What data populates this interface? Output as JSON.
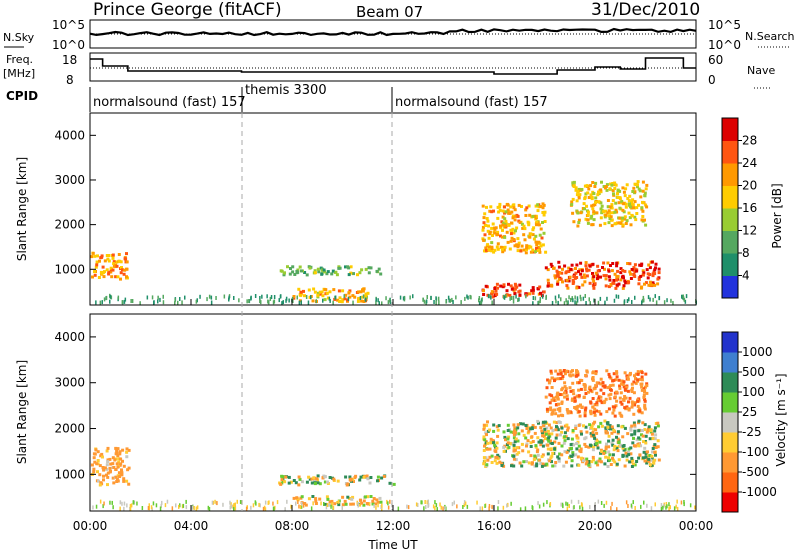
{
  "header": {
    "radar": "Prince George (fitACF)",
    "beam": "Beam 07",
    "date": "31/Dec/2010"
  },
  "noise_panel": {
    "left_label": "N.Sky",
    "right_label": "N.Search",
    "left_ticks": [
      "10^5",
      "10^0"
    ],
    "right_ticks": [
      "10^5",
      "10^0"
    ]
  },
  "freq_panel": {
    "left_label_1": "Freq.",
    "left_label_2": "[MHz]",
    "right_label": "Nave",
    "left_ticks": [
      "18",
      "8"
    ],
    "right_ticks": [
      "60",
      "0"
    ]
  },
  "cpid": {
    "label": "CPID",
    "segments": [
      {
        "text": "normalsound (fast) 157",
        "start": "00:00"
      },
      {
        "text": "themis 3300",
        "start": "06:00"
      },
      {
        "text": "normalsound (fast) 157",
        "start": "12:00"
      }
    ]
  },
  "power_panel": {
    "ylabel": "Slant Range [km]",
    "yticks": [
      "1000",
      "2000",
      "3000",
      "4000"
    ],
    "colorbar_label": "Power [dB]",
    "colorbar_ticks": [
      "4",
      "8",
      "12",
      "16",
      "20",
      "24",
      "28"
    ],
    "colorbar_colors": [
      "#2233dd",
      "#1f8f6a",
      "#55a860",
      "#99cc33",
      "#ffcc00",
      "#ff9900",
      "#ff5511",
      "#dd0000"
    ]
  },
  "velocity_panel": {
    "ylabel": "Slant Range [km]",
    "yticks": [
      "1000",
      "2000",
      "3000",
      "4000"
    ],
    "colorbar_label": "Velocity [m s⁻¹]",
    "colorbar_ticks": [
      "1000",
      "500",
      "100",
      "25",
      "-25",
      "-100",
      "-500",
      "-1000"
    ],
    "colorbar_colors": [
      "#2233cc",
      "#3f7fd0",
      "#2e8b57",
      "#66cc33",
      "#c8c8c0",
      "#ffcc33",
      "#ff9933",
      "#ff6611",
      "#ee0000"
    ]
  },
  "xaxis": {
    "label": "Time UT",
    "ticks": [
      "00:00",
      "04:00",
      "08:00",
      "12:00",
      "16:00",
      "20:00",
      "00:00"
    ]
  },
  "chart_data": {
    "type": "heatmap",
    "title": "Prince George (fitACF)   Beam 07   31/Dec/2010",
    "xlabel": "Time UT",
    "ylabel": "Slant Range [km]",
    "xlim": [
      "00:00",
      "24:00"
    ],
    "ylim": [
      200,
      4500
    ],
    "series": [
      {
        "name": "Power [dB]",
        "zlim": [
          0,
          30
        ],
        "regions": [
          {
            "t": [
              0.0,
              1.5
            ],
            "r": [
              800,
              1400
            ],
            "value": 22
          },
          {
            "t": [
              7.5,
              11.5
            ],
            "r": [
              900,
              1100
            ],
            "value": 12
          },
          {
            "t": [
              8.0,
              11.0
            ],
            "r": [
              300,
              600
            ],
            "value": 20
          },
          {
            "t": [
              15.5,
              18.0
            ],
            "r": [
              400,
              700
            ],
            "value": 28
          },
          {
            "t": [
              15.5,
              18.0
            ],
            "r": [
              1400,
              2500
            ],
            "value": 20
          },
          {
            "t": [
              19.0,
              22.0
            ],
            "r": [
              2000,
              3000
            ],
            "value": 18
          },
          {
            "t": [
              18.0,
              22.5
            ],
            "r": [
              600,
              1200
            ],
            "value": 26
          }
        ]
      },
      {
        "name": "Velocity [m s-1]",
        "zlim": [
          -1000,
          1000
        ],
        "regions": [
          {
            "t": [
              0.0,
              1.5
            ],
            "r": [
              800,
              1600
            ],
            "value": -250
          },
          {
            "t": [
              7.0,
              12.0
            ],
            "r": [
              800,
              1000
            ],
            "value": 0
          },
          {
            "t": [
              8.0,
              11.5
            ],
            "r": [
              350,
              550
            ],
            "value": -120
          },
          {
            "t": [
              15.5,
              22.5
            ],
            "r": [
              1200,
              2200
            ],
            "value": 0
          },
          {
            "t": [
              18.0,
              22.0
            ],
            "r": [
              2300,
              3300
            ],
            "value": -400
          }
        ]
      }
    ]
  }
}
